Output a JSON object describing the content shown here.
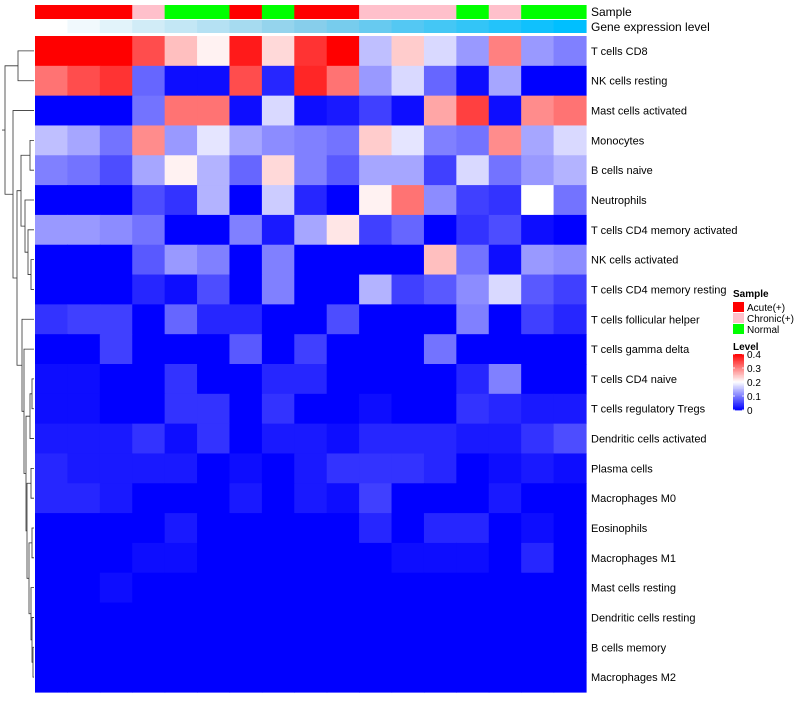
{
  "chart_data": {
    "type": "heatmap",
    "annotation_labels": [
      "Sample",
      "Gene expression level"
    ],
    "sample_groups": [
      "Acute(+)",
      "Acute(+)",
      "Acute(+)",
      "Chronic(+)",
      "Normal",
      "Normal",
      "Acute(+)",
      "Normal",
      "Acute(+)",
      "Acute(+)",
      "Chronic(+)",
      "Chronic(+)",
      "Chronic(+)",
      "Normal",
      "Chronic(+)",
      "Normal",
      "Normal"
    ],
    "expression_level": [
      0.0,
      0.06,
      0.12,
      0.19,
      0.25,
      0.31,
      0.37,
      0.44,
      0.5,
      0.56,
      0.62,
      0.69,
      0.75,
      0.81,
      0.87,
      0.94,
      1.0
    ],
    "rows": [
      "T cells CD8",
      "NK cells resting",
      "Mast cells activated",
      "Monocytes",
      "B cells naive",
      "Neutrophils",
      "T cells CD4 memory activated",
      "NK cells activated",
      "T cells CD4 memory resting",
      "T cells follicular helper",
      "T cells gamma delta",
      "T cells CD4 naive",
      "T cells regulatory  Tregs",
      "Dendritic cells activated",
      "Plasma cells",
      "Macrophages M0",
      "Eosinophils",
      "Macrophages M1",
      "Mast cells resting",
      "Dendritic cells resting",
      "B cells memory",
      "Macrophages M2"
    ],
    "values": [
      [
        0.4,
        0.4,
        0.4,
        0.34,
        0.25,
        0.21,
        0.38,
        0.23,
        0.36,
        0.4,
        0.15,
        0.24,
        0.17,
        0.12,
        0.3,
        0.12,
        0.1
      ],
      [
        0.31,
        0.34,
        0.36,
        0.08,
        0.01,
        0.01,
        0.34,
        0.03,
        0.37,
        0.31,
        0.12,
        0.17,
        0.08,
        0.01,
        0.13,
        0.0,
        0.0
      ],
      [
        0.0,
        0.0,
        0.0,
        0.09,
        0.31,
        0.31,
        0.01,
        0.17,
        0.01,
        0.02,
        0.05,
        0.01,
        0.27,
        0.35,
        0.01,
        0.29,
        0.31
      ],
      [
        0.15,
        0.13,
        0.09,
        0.29,
        0.12,
        0.18,
        0.13,
        0.11,
        0.1,
        0.09,
        0.24,
        0.18,
        0.1,
        0.09,
        0.29,
        0.13,
        0.17
      ],
      [
        0.1,
        0.09,
        0.06,
        0.13,
        0.21,
        0.14,
        0.08,
        0.23,
        0.1,
        0.07,
        0.13,
        0.13,
        0.05,
        0.17,
        0.09,
        0.12,
        0.14
      ],
      [
        0.0,
        0.0,
        0.0,
        0.06,
        0.04,
        0.14,
        0.0,
        0.16,
        0.03,
        0.0,
        0.21,
        0.31,
        0.11,
        0.05,
        0.04,
        0.2,
        0.09
      ],
      [
        0.12,
        0.12,
        0.11,
        0.09,
        0.0,
        0.0,
        0.1,
        0.02,
        0.13,
        0.22,
        0.05,
        0.08,
        0.0,
        0.04,
        0.06,
        0.01,
        0.0
      ],
      [
        0.0,
        0.0,
        0.0,
        0.07,
        0.12,
        0.1,
        0.0,
        0.1,
        0.0,
        0.0,
        0.0,
        0.0,
        0.25,
        0.09,
        0.01,
        0.12,
        0.11
      ],
      [
        0.0,
        0.0,
        0.0,
        0.03,
        0.01,
        0.06,
        0.0,
        0.1,
        0.0,
        0.0,
        0.14,
        0.05,
        0.07,
        0.11,
        0.17,
        0.07,
        0.05
      ],
      [
        0.04,
        0.05,
        0.05,
        0.0,
        0.08,
        0.03,
        0.03,
        0.0,
        0.0,
        0.06,
        0.0,
        0.0,
        0.0,
        0.1,
        0.0,
        0.05,
        0.03
      ],
      [
        0.0,
        0.0,
        0.05,
        0.0,
        0.0,
        0.0,
        0.07,
        0.0,
        0.05,
        0.0,
        0.0,
        0.0,
        0.09,
        0.0,
        0.0,
        0.0,
        0.0
      ],
      [
        0.01,
        0.01,
        0.0,
        0.0,
        0.04,
        0.0,
        0.0,
        0.03,
        0.03,
        0.0,
        0.0,
        0.0,
        0.0,
        0.03,
        0.1,
        0.0,
        0.0
      ],
      [
        0.01,
        0.01,
        0.0,
        0.0,
        0.04,
        0.04,
        0.0,
        0.04,
        0.0,
        0.0,
        0.01,
        0.0,
        0.0,
        0.04,
        0.03,
        0.02,
        0.02
      ],
      [
        0.02,
        0.02,
        0.02,
        0.04,
        0.01,
        0.04,
        0.0,
        0.02,
        0.02,
        0.01,
        0.03,
        0.03,
        0.03,
        0.02,
        0.02,
        0.04,
        0.06
      ],
      [
        0.03,
        0.02,
        0.02,
        0.02,
        0.02,
        0.0,
        0.01,
        0.0,
        0.02,
        0.04,
        0.04,
        0.04,
        0.03,
        0.0,
        0.01,
        0.02,
        0.01
      ],
      [
        0.03,
        0.03,
        0.02,
        0.0,
        0.0,
        0.0,
        0.02,
        0.0,
        0.02,
        0.01,
        0.05,
        0.0,
        0.0,
        0.0,
        0.02,
        0.0,
        0.0
      ],
      [
        0.0,
        0.0,
        0.0,
        0.0,
        0.02,
        0.0,
        0.0,
        0.0,
        0.0,
        0.0,
        0.03,
        0.0,
        0.03,
        0.03,
        0.0,
        0.01,
        0.0
      ],
      [
        0.0,
        0.0,
        0.0,
        0.01,
        0.01,
        0.0,
        0.0,
        0.0,
        0.0,
        0.0,
        0.0,
        0.01,
        0.01,
        0.01,
        0.0,
        0.03,
        0.0
      ],
      [
        0.0,
        0.0,
        0.01,
        0.0,
        0.0,
        0.0,
        0.0,
        0.0,
        0.0,
        0.0,
        0.0,
        0.0,
        0.0,
        0.0,
        0.0,
        0.0,
        0.0
      ],
      [
        0.0,
        0.0,
        0.0,
        0.0,
        0.0,
        0.0,
        0.0,
        0.0,
        0.0,
        0.0,
        0.0,
        0.0,
        0.0,
        0.0,
        0.0,
        0.0,
        0.0
      ],
      [
        0.0,
        0.0,
        0.0,
        0.0,
        0.0,
        0.0,
        0.0,
        0.0,
        0.0,
        0.0,
        0.0,
        0.0,
        0.0,
        0.0,
        0.0,
        0.0,
        0.0
      ],
      [
        0.0,
        0.0,
        0.0,
        0.0,
        0.0,
        0.0,
        0.0,
        0.0,
        0.0,
        0.0,
        0.0,
        0.0,
        0.0,
        0.0,
        0.0,
        0.0,
        0.0
      ]
    ],
    "legend_sample": {
      "title": "Sample",
      "entries": [
        {
          "label": "Acute(+)",
          "color": "#ff0000"
        },
        {
          "label": "Chronic(+)",
          "color": "#ffc0cb"
        },
        {
          "label": "Normal",
          "color": "#00ff00"
        }
      ]
    },
    "legend_level": {
      "title": "Level",
      "ticks": [
        "0.4",
        "0.3",
        "0.2",
        "0.1",
        "0"
      ],
      "range": [
        0,
        0.4
      ],
      "colors": [
        "#0000ff",
        "#ffffff",
        "#ff0000"
      ]
    },
    "expression_colors": [
      "#ffffff",
      "#87ceeb",
      "#00bfff"
    ]
  }
}
